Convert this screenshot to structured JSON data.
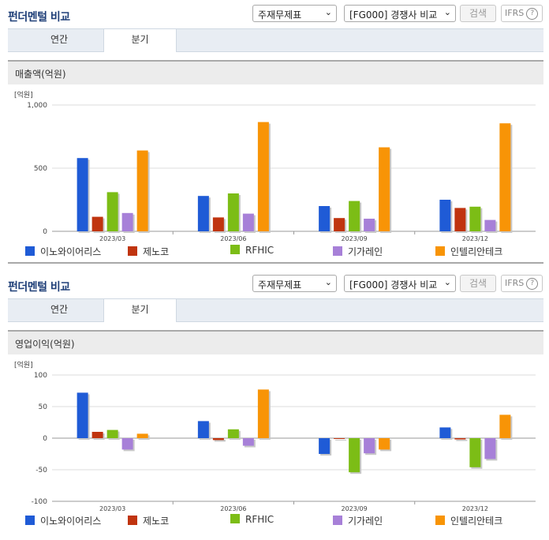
{
  "panels": [
    {
      "title": "펀더멘털 비교",
      "select_statement": "주재무제표",
      "select_compare": "[FG000] 경쟁사 비교",
      "search_label": "검색",
      "ifrs_label": "IFRS",
      "tabs": [
        {
          "label": "연간"
        },
        {
          "label": "분기"
        }
      ],
      "section_title": "매출액(억원)",
      "unit": "[억원]"
    },
    {
      "title": "펀더멘털 비교",
      "select_statement": "주재무제표",
      "select_compare": "[FG000] 경쟁사 비교",
      "search_label": "검색",
      "ifrs_label": "IFRS",
      "tabs": [
        {
          "label": "연간"
        },
        {
          "label": "분기"
        }
      ],
      "section_title": "영업이익(억원)",
      "unit": "[억원]"
    }
  ],
  "legend": [
    {
      "name": "이노와이어리스",
      "color": "#1f5bd6"
    },
    {
      "name": "제노코",
      "color": "#c0340f"
    },
    {
      "name": "RFHIC",
      "color": "#7cbd16"
    },
    {
      "name": "기가레인",
      "color": "#a780d8"
    },
    {
      "name": "인텔리안테크",
      "color": "#f89406"
    }
  ],
  "chart_data": [
    {
      "type": "bar",
      "categories": [
        "2023/03",
        "2023/06",
        "2023/09",
        "2023/12"
      ],
      "ylim": [
        0,
        1000
      ],
      "yticks": [
        0,
        500,
        1000
      ],
      "ytick_labels": [
        "0",
        "500",
        "1,000"
      ],
      "ylabel": "[억원]",
      "series": [
        {
          "name": "이노와이어리스",
          "color": "#1f5bd6",
          "values": [
            580,
            280,
            200,
            250
          ]
        },
        {
          "name": "제노코",
          "color": "#c0340f",
          "values": [
            115,
            110,
            105,
            185
          ]
        },
        {
          "name": "RFHIC",
          "color": "#7cbd16",
          "values": [
            310,
            300,
            240,
            195
          ]
        },
        {
          "name": "기가레인",
          "color": "#a780d8",
          "values": [
            145,
            140,
            100,
            90
          ]
        },
        {
          "name": "인텔리안테크",
          "color": "#f89406",
          "values": [
            640,
            865,
            665,
            855
          ]
        }
      ]
    },
    {
      "type": "bar",
      "categories": [
        "2023/03",
        "2023/06",
        "2023/09",
        "2023/12"
      ],
      "ylim": [
        -100,
        100
      ],
      "yticks": [
        -100,
        -50,
        0,
        50,
        100
      ],
      "ytick_labels": [
        "-100",
        "-50",
        "0",
        "50",
        "100"
      ],
      "ylabel": "[억원]",
      "series": [
        {
          "name": "이노와이어리스",
          "color": "#1f5bd6",
          "values": [
            72,
            27,
            -25,
            17
          ]
        },
        {
          "name": "제노코",
          "color": "#c0340f",
          "values": [
            10,
            -3,
            0,
            -2
          ]
        },
        {
          "name": "RFHIC",
          "color": "#7cbd16",
          "values": [
            13,
            14,
            -54,
            -46
          ]
        },
        {
          "name": "기가레인",
          "color": "#a780d8",
          "values": [
            -18,
            -12,
            -24,
            -33
          ]
        },
        {
          "name": "인텔리안테크",
          "color": "#f89406",
          "values": [
            7,
            77,
            -18,
            37
          ]
        }
      ]
    }
  ]
}
